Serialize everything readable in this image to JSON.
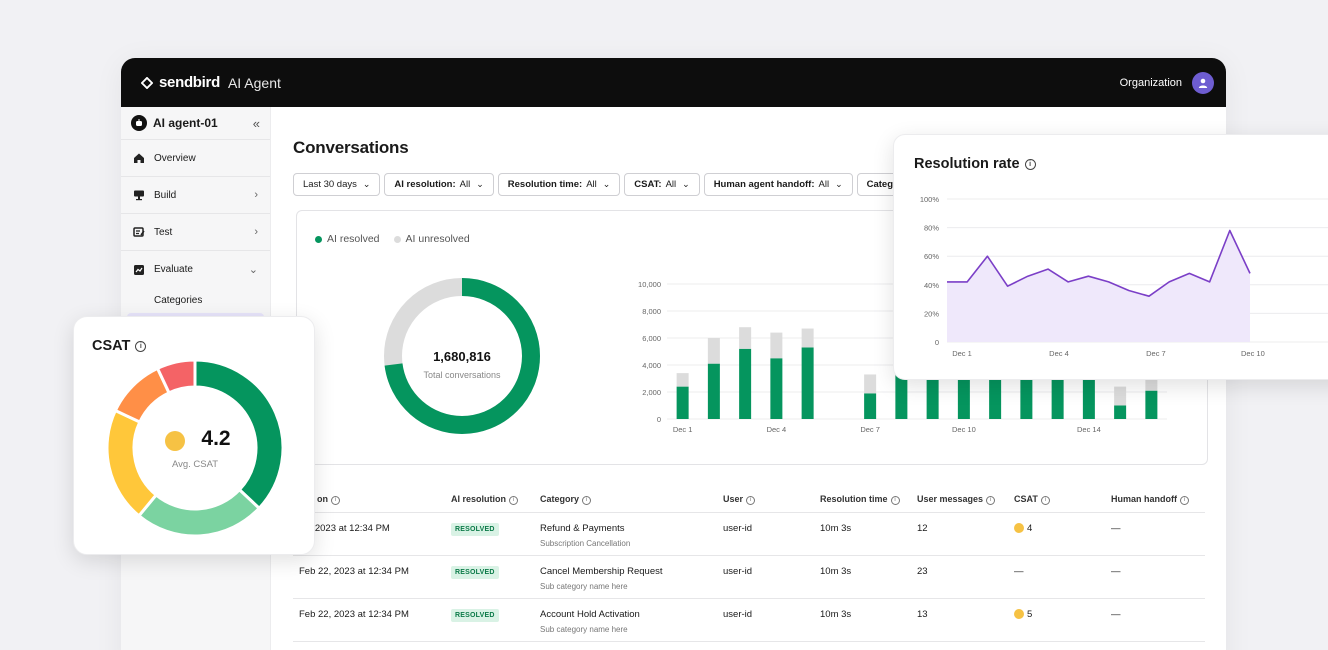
{
  "topbar": {
    "brand_name": "sendbird",
    "product": "AI Agent",
    "org_label": "Organization"
  },
  "sidebar": {
    "agent_name": "AI agent-01",
    "items": [
      {
        "label": "Overview",
        "icon": "home-icon"
      },
      {
        "label": "Build",
        "icon": "build-icon"
      },
      {
        "label": "Test",
        "icon": "test-icon"
      },
      {
        "label": "Evaluate",
        "icon": "chart-icon"
      }
    ],
    "sub_items": [
      "Categories"
    ]
  },
  "page": {
    "title": "Conversations"
  },
  "filters": [
    {
      "key": "",
      "value": "Last 30 days"
    },
    {
      "key": "AI resolution:",
      "value": "All"
    },
    {
      "key": "Resolution time:",
      "value": "All"
    },
    {
      "key": "CSAT:",
      "value": "All"
    },
    {
      "key": "Human agent handoff:",
      "value": "All"
    },
    {
      "key": "Categ",
      "value": ""
    }
  ],
  "legend": {
    "resolved": "AI resolved",
    "unresolved": "AI unresolved"
  },
  "donut": {
    "total": "1,680,816",
    "label": "Total conversations",
    "resolved_fraction": 0.73
  },
  "colors": {
    "green": "#05955e",
    "gray": "#dcdcdc",
    "purple": "#7b3fc7",
    "purple_fill": "#efe8fb"
  },
  "table": {
    "headers": [
      "sed on",
      "AI resolution",
      "Category",
      "User",
      "Resolution time",
      "User messages",
      "CSAT",
      "Human handoff"
    ],
    "rows": [
      {
        "date": "22, 2023 at 12:34 PM",
        "resolution": "RESOLVED",
        "category": "Refund & Payments",
        "subcategory": "Subscription Cancellation",
        "user": "user-id",
        "time": "10m 3s",
        "messages": "12",
        "csat": "4",
        "handoff": "—"
      },
      {
        "date": "Feb 22, 2023 at 12:34 PM",
        "resolution": "RESOLVED",
        "category": "Cancel Membership Request",
        "subcategory": "Sub category name here",
        "user": "user-id",
        "time": "10m 3s",
        "messages": "23",
        "csat": "—",
        "handoff": "—"
      },
      {
        "date": "Feb 22, 2023 at 12:34 PM",
        "resolution": "RESOLVED",
        "category": "Account Hold Activation",
        "subcategory": "Sub category name here",
        "user": "user-id",
        "time": "10m 3s",
        "messages": "13",
        "csat": "5",
        "handoff": "—"
      }
    ]
  },
  "csat_card": {
    "title": "CSAT",
    "value": "4.2",
    "label": "Avg. CSAT"
  },
  "resolution_card": {
    "title": "Resolution rate"
  },
  "chart_data": [
    {
      "type": "bar",
      "stacked": true,
      "x_ticks": [
        "Dec 1",
        "Dec 4",
        "Dec 7",
        "Dec 10",
        "Dec 14"
      ],
      "y_ticks": [
        "0",
        "2,000",
        "4,000",
        "6,000",
        "8,000",
        "10,000"
      ],
      "ylim": [
        0,
        10000
      ],
      "grid": true,
      "series": [
        {
          "values": [
            2400,
            4100,
            5200,
            4500,
            5300,
            0,
            1900,
            4800,
            5000,
            4900,
            5000,
            4900,
            5000,
            5000,
            1000,
            2100
          ]
        },
        {
          "values": [
            1000,
            1900,
            1600,
            1900,
            1400,
            0,
            1400,
            0,
            0,
            0,
            0,
            0,
            0,
            0,
            1400,
            800
          ]
        }
      ]
    },
    {
      "type": "line",
      "x_ticks": [
        "Dec 1",
        "Dec 4",
        "Dec 7",
        "Dec 10"
      ],
      "y_ticks": [
        "0",
        "20%",
        "40%",
        "60%",
        "80%",
        "100%"
      ],
      "ylim": [
        0,
        100
      ],
      "grid": true,
      "series": [
        {
          "values": [
            42,
            42,
            60,
            39,
            46,
            51,
            42,
            46,
            42,
            36,
            32,
            42,
            48,
            42,
            78,
            48
          ]
        }
      ]
    },
    {
      "type": "pie",
      "donut": true,
      "series": [
        {
          "values": [
            37,
            24,
            21,
            11,
            7
          ]
        }
      ],
      "colors": [
        "#05955e",
        "#7bd3a1",
        "#ffc73a",
        "#ff8f47",
        "#f46366"
      ]
    }
  ]
}
